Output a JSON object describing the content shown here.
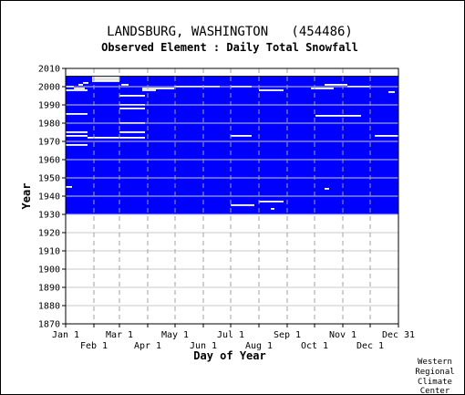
{
  "chart_data": {
    "type": "heatmap",
    "title": "LANDSBURG, WASHINGTON   (454486)",
    "subtitle": "Observed Element : Daily Total Snowfall",
    "xlabel": "Day of Year",
    "ylabel": "Year",
    "ylim": [
      1870,
      2010
    ],
    "xlim": [
      1,
      366
    ],
    "y_ticks": [
      1870,
      1880,
      1890,
      1900,
      1910,
      1920,
      1930,
      1940,
      1950,
      1960,
      1970,
      1980,
      1990,
      2000,
      2010
    ],
    "x_ticks_top": [
      {
        "label": "Jan 1",
        "day": 1
      },
      {
        "label": "Mar 1",
        "day": 60
      },
      {
        "label": "May 1",
        "day": 121
      },
      {
        "label": "Jul 1",
        "day": 182
      },
      {
        "label": "Sep 1",
        "day": 244
      },
      {
        "label": "Nov 1",
        "day": 305
      },
      {
        "label": "Dec 31",
        "day": 366
      }
    ],
    "x_ticks_bottom": [
      {
        "label": "Feb 1",
        "day": 32
      },
      {
        "label": "Apr 1",
        "day": 91
      },
      {
        "label": "Jun 1",
        "day": 152
      },
      {
        "label": "Aug 1",
        "day": 213
      },
      {
        "label": "Oct 1",
        "day": 274
      },
      {
        "label": "Dec 1",
        "day": 335
      }
    ],
    "data_fill_color": "#0000ff",
    "data_years": [
      1931,
      2005
    ],
    "missing_segments": [
      {
        "year": 2005,
        "day_start": 30,
        "day_end": 60
      },
      {
        "year": 2004,
        "day_start": 30,
        "day_end": 60
      },
      {
        "year": 2003,
        "day_start": 30,
        "day_end": 60
      },
      {
        "year": 2002,
        "day_start": 20,
        "day_end": 26
      },
      {
        "year": 2001,
        "day_start": 15,
        "day_end": 20
      },
      {
        "year": 2001,
        "day_start": 62,
        "day_end": 70
      },
      {
        "year": 2001,
        "day_start": 285,
        "day_end": 310
      },
      {
        "year": 2000,
        "day_start": 1,
        "day_end": 10
      },
      {
        "year": 2000,
        "day_start": 120,
        "day_end": 170
      },
      {
        "year": 2000,
        "day_start": 182,
        "day_end": 205
      },
      {
        "year": 2000,
        "day_start": 310,
        "day_end": 335
      },
      {
        "year": 1999,
        "day_start": 10,
        "day_end": 22
      },
      {
        "year": 1999,
        "day_start": 85,
        "day_end": 120
      },
      {
        "year": 1999,
        "day_start": 270,
        "day_end": 295
      },
      {
        "year": 1998,
        "day_start": 1,
        "day_end": 25
      },
      {
        "year": 1998,
        "day_start": 85,
        "day_end": 100
      },
      {
        "year": 1998,
        "day_start": 213,
        "day_end": 240
      },
      {
        "year": 1997,
        "day_start": 355,
        "day_end": 362
      },
      {
        "year": 1995,
        "day_start": 60,
        "day_end": 88
      },
      {
        "year": 1990,
        "day_start": 60,
        "day_end": 88
      },
      {
        "year": 1988,
        "day_start": 60,
        "day_end": 88
      },
      {
        "year": 1985,
        "day_start": 1,
        "day_end": 25
      },
      {
        "year": 1984,
        "day_start": 275,
        "day_end": 325
      },
      {
        "year": 1980,
        "day_start": 60,
        "day_end": 88
      },
      {
        "year": 1975,
        "day_start": 1,
        "day_end": 25
      },
      {
        "year": 1975,
        "day_start": 60,
        "day_end": 88
      },
      {
        "year": 1973,
        "day_start": 1,
        "day_end": 25
      },
      {
        "year": 1973,
        "day_start": 182,
        "day_end": 205
      },
      {
        "year": 1973,
        "day_start": 340,
        "day_end": 366
      },
      {
        "year": 1972,
        "day_start": 25,
        "day_end": 60
      },
      {
        "year": 1972,
        "day_start": 60,
        "day_end": 88
      },
      {
        "year": 1968,
        "day_start": 1,
        "day_end": 25
      },
      {
        "year": 1945,
        "day_start": 1,
        "day_end": 8
      },
      {
        "year": 1944,
        "day_start": 285,
        "day_end": 290
      },
      {
        "year": 1937,
        "day_start": 213,
        "day_end": 240
      },
      {
        "year": 1935,
        "day_start": 182,
        "day_end": 208
      },
      {
        "year": 1933,
        "day_start": 226,
        "day_end": 230
      }
    ]
  },
  "credit": [
    "Western",
    "Regional",
    "Climate",
    "Center"
  ]
}
